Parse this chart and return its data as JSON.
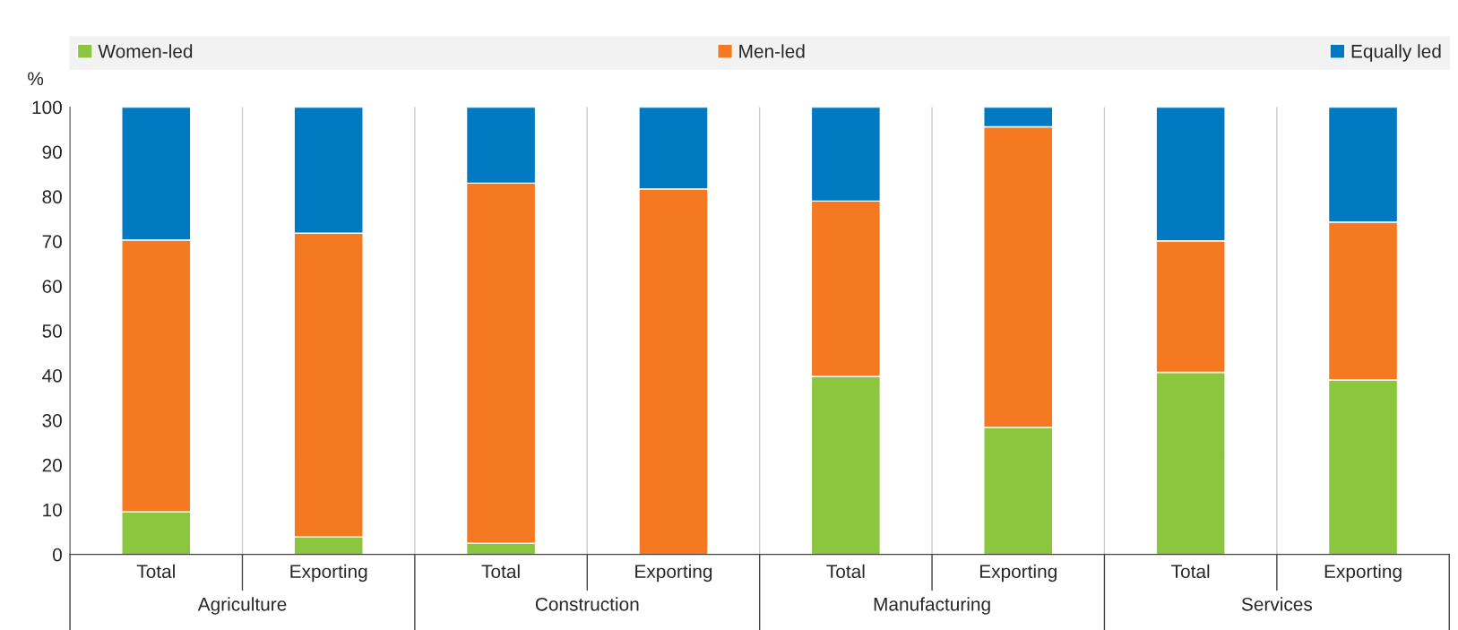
{
  "chart_data": {
    "type": "bar",
    "stacked": true,
    "ylabel": "%",
    "categories": [
      "Total",
      "Exporting",
      "Total",
      "Exporting",
      "Total",
      "Exporting",
      "Total",
      "Exporting"
    ],
    "annotations": [
      "Agriculture",
      "Construction",
      "Manufacturing",
      "Services"
    ],
    "series": [
      {
        "name": "Women-led",
        "color": "#8cc63f",
        "values": [
          9.5,
          3.9,
          2.5,
          0,
          39.8,
          28.4,
          40.7,
          39
        ]
      },
      {
        "name": "Men-led",
        "color": "#f47920",
        "values": [
          60.8,
          67.9,
          80.5,
          81.7,
          39.2,
          67.2,
          29.4,
          35.3
        ]
      },
      {
        "name": "Equally led",
        "color": "#0079c1",
        "values": [
          29.7,
          28.2,
          17,
          18.3,
          21,
          4.4,
          29.9,
          25.7
        ]
      }
    ],
    "ylim": [
      0,
      100
    ],
    "yticks": [
      0,
      10,
      20,
      30,
      40,
      50,
      60,
      70,
      80,
      90,
      100
    ],
    "grid": "x",
    "legend": "top"
  }
}
